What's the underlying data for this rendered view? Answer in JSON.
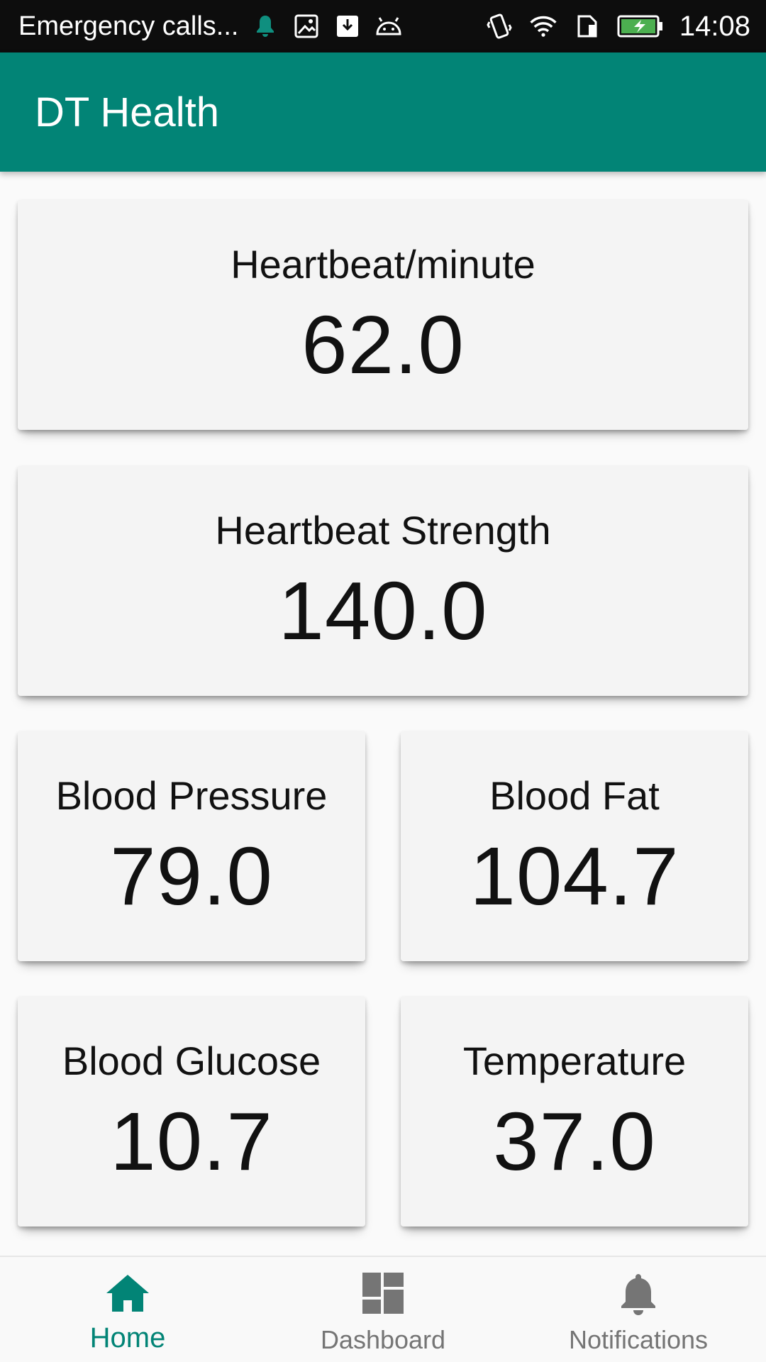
{
  "status_bar": {
    "notification_text": "Emergency calls...",
    "time": "14:08",
    "icons": [
      "bell-icon",
      "image-icon",
      "download-icon",
      "android-icon",
      "vibrate-icon",
      "wifi-icon",
      "sim-icon",
      "battery-charging-icon"
    ]
  },
  "app_bar": {
    "title": "DT Health",
    "color": "#028476"
  },
  "cards": {
    "heartbeat": {
      "label": "Heartbeat/minute",
      "value": "62.0"
    },
    "heartbeat_strength": {
      "label": "Heartbeat Strength",
      "value": "140.0"
    },
    "blood_pressure": {
      "label": "Blood Pressure",
      "value": "79.0"
    },
    "blood_fat": {
      "label": "Blood Fat",
      "value": "104.7"
    },
    "blood_glucose": {
      "label": "Blood Glucose",
      "value": "10.7"
    },
    "temperature": {
      "label": "Temperature",
      "value": "37.0"
    }
  },
  "bottom_nav": {
    "active": "home",
    "active_color": "#028476",
    "items": [
      {
        "id": "home",
        "label": "Home",
        "icon": "home-icon"
      },
      {
        "id": "dashboard",
        "label": "Dashboard",
        "icon": "dashboard-icon"
      },
      {
        "id": "notifications",
        "label": "Notifications",
        "icon": "bell-icon"
      }
    ]
  }
}
